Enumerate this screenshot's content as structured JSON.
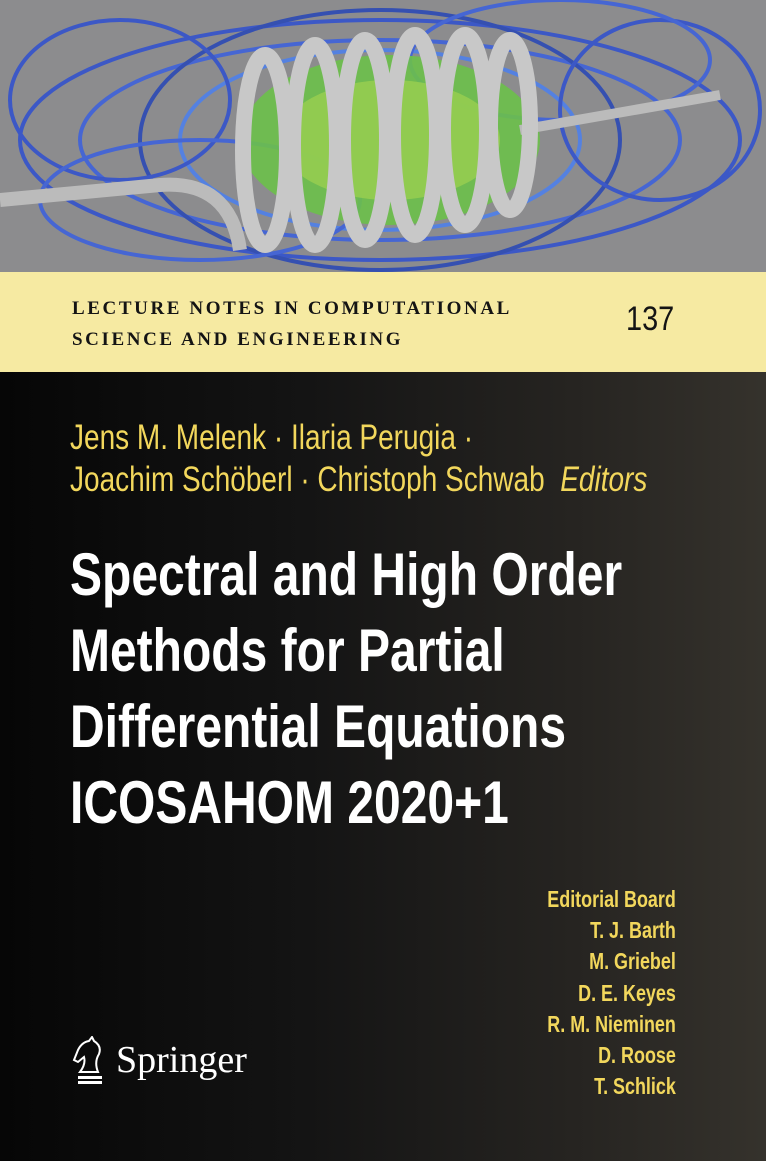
{
  "cover": {
    "series_line1": "LECTURE NOTES IN COMPUTATIONAL",
    "series_line2": "SCIENCE AND ENGINEERING",
    "volume": "137",
    "authors_line1": "Jens M. Melenk · Ilaria Perugia ·",
    "authors_line2": "Joachim Schöberl · Christoph Schwab",
    "editors_label": "Editors",
    "title_lines": [
      "Spectral and High Order",
      "Methods for Partial",
      "Differential Equations",
      "ICOSAHOM 2020+1"
    ],
    "editorial_board": [
      "Editorial Board",
      "T. J. Barth",
      "M. Griebel",
      "D. E. Keyes",
      "R. M. Nieminen",
      "D. Roose",
      "T. Schlick"
    ],
    "publisher": "Springer",
    "publisher_logo_icon": "knight-chess-icon"
  },
  "colors": {
    "band": "#f6eaa2",
    "author_text": "#f2d75c",
    "title_text": "#ffffff"
  }
}
